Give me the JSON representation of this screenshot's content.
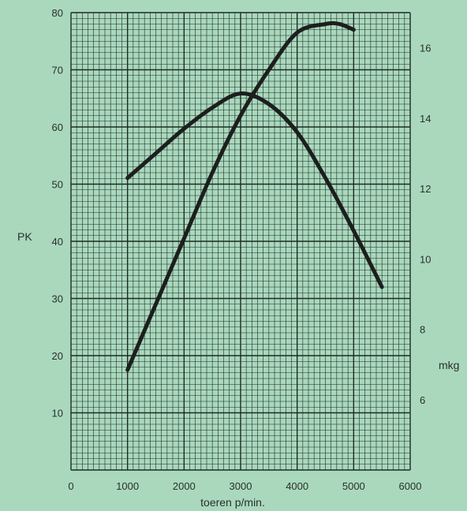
{
  "chart_data": {
    "type": "line",
    "xlabel": "toeren p/min.",
    "ylabel": "PK",
    "y2label": "mkg",
    "xlim": [
      0,
      6000
    ],
    "ylim": [
      0,
      80
    ],
    "y2lim": [
      4,
      17
    ],
    "grid": true,
    "x_ticks": [
      "0",
      "1000",
      "2000",
      "3000",
      "4000",
      "5000",
      "6000"
    ],
    "y_ticks": [
      "10",
      "20",
      "30",
      "40",
      "50",
      "60",
      "70",
      "80"
    ],
    "y2_ticks": [
      "6",
      "8",
      "10",
      "12",
      "14",
      "16"
    ],
    "series": [
      {
        "axis": "left",
        "x": [
          1000,
          1500,
          2000,
          2500,
          3000,
          3500,
          4000,
          4500,
          4750,
          5000
        ],
        "y": [
          17.5,
          29,
          40.5,
          52,
          62,
          70,
          76.5,
          78,
          78,
          77
        ]
      },
      {
        "axis": "right",
        "x": [
          1000,
          1500,
          2000,
          2500,
          3000,
          3500,
          4000,
          4500,
          5000,
          5500
        ],
        "y": [
          12.3,
          13.0,
          13.7,
          14.3,
          14.7,
          14.4,
          13.6,
          12.3,
          10.8,
          9.2
        ]
      }
    ]
  }
}
